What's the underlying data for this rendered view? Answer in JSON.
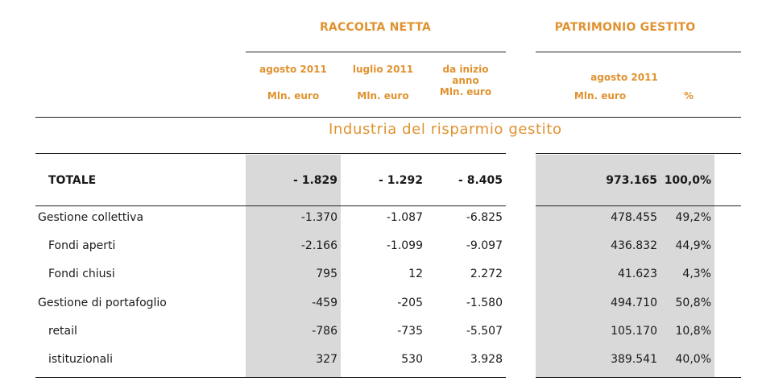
{
  "headers": {
    "raccolta_title": "RACCOLTA NETTA",
    "patrimonio_title": "PATRIMONIO GESTITO",
    "col1_period": "agosto 2011",
    "col2_period": "luglio 2011",
    "col3_period_line1": "da inizio",
    "col3_period_line2": "anno",
    "col4_period": "agosto 2011",
    "unit": "Mln. euro",
    "percent": "%"
  },
  "section_title": "Industria del risparmio gestito",
  "totale": {
    "label": "TOTALE",
    "v1": "- 1.829",
    "v2": "- 1.292",
    "v3": "- 8.405",
    "v4": "973.165",
    "pct": "100,0%"
  },
  "rows": [
    {
      "label": "Gestione collettiva",
      "v1": "-1.370",
      "v2": "-1.087",
      "v3": "-6.825",
      "v4": "478.455",
      "pct": "49,2%"
    },
    {
      "label": "Fondi aperti",
      "v1": "-2.166",
      "v2": "-1.099",
      "v3": "-9.097",
      "v4": "436.832",
      "pct": "44,9%"
    },
    {
      "label": "Fondi chiusi",
      "v1": "795",
      "v2": "12",
      "v3": "2.272",
      "v4": "41.623",
      "pct": "4,3%"
    },
    {
      "label": "Gestione di portafoglio",
      "v1": "-459",
      "v2": "-205",
      "v3": "-1.580",
      "v4": "494.710",
      "pct": "50,8%"
    },
    {
      "label": "retail",
      "v1": "-786",
      "v2": "-735",
      "v3": "-5.507",
      "v4": "105.170",
      "pct": "10,8%"
    },
    {
      "label": "istituzionali",
      "v1": "327",
      "v2": "530",
      "v3": "3.928",
      "v4": "389.541",
      "pct": "40,0%"
    }
  ]
}
